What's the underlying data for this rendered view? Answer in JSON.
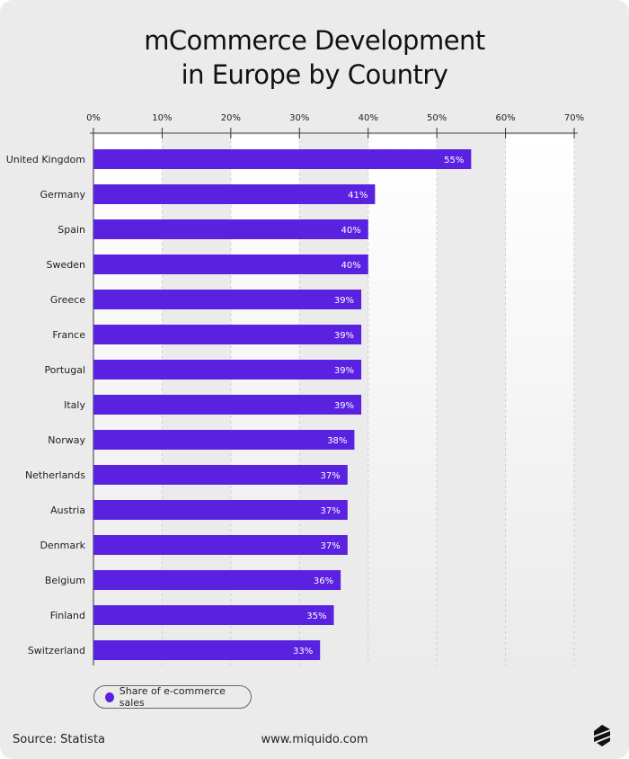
{
  "title_line1": "mCommerce Development",
  "title_line2": "in Europe by Country",
  "chart_data": {
    "type": "bar",
    "orientation": "horizontal",
    "title": "mCommerce Development in Europe by Country",
    "categories": [
      "United Kingdom",
      "Germany",
      "Spain",
      "Sweden",
      "Greece",
      "France",
      "Portugal",
      "Italy",
      "Norway",
      "Netherlands",
      "Austria",
      "Denmark",
      "Belgium",
      "Finland",
      "Switzerland"
    ],
    "series": [
      {
        "name": "Share of e-commerce sales",
        "values": [
          55,
          41,
          40,
          40,
          39,
          39,
          39,
          39,
          38,
          37,
          37,
          37,
          36,
          35,
          33
        ],
        "color": "#5a21e0"
      }
    ],
    "xlim": [
      0,
      70
    ],
    "xticks": [
      "0%",
      "10%",
      "20%",
      "30%",
      "40%",
      "50%",
      "60%",
      "70%"
    ],
    "axis_position": "top",
    "grid": true,
    "legend": "bottom-left",
    "value_suffix": "%"
  },
  "footer": {
    "source": "Source: Statista",
    "url": "www.miquido.com",
    "logo_icon": "miquido-logo"
  }
}
